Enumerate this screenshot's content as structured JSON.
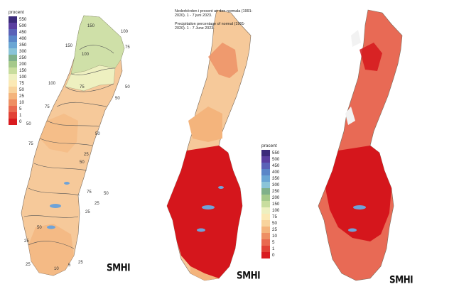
{
  "legend": {
    "title": "procent",
    "levels": [
      {
        "label": "550",
        "color": "#3b2a7a"
      },
      {
        "label": "500",
        "color": "#5a3fa0"
      },
      {
        "label": "450",
        "color": "#5a62b8"
      },
      {
        "label": "400",
        "color": "#5a86c8"
      },
      {
        "label": "350",
        "color": "#6aa6d4"
      },
      {
        "label": "300",
        "color": "#8ac4d8"
      },
      {
        "label": "250",
        "color": "#7fb08a"
      },
      {
        "label": "200",
        "color": "#a5c98b"
      },
      {
        "label": "150",
        "color": "#c8dd9e"
      },
      {
        "label": "100",
        "color": "#eef0c0"
      },
      {
        "label": "75",
        "color": "#fbe9b5"
      },
      {
        "label": "50",
        "color": "#f8d39c"
      },
      {
        "label": "25",
        "color": "#f4b47c"
      },
      {
        "label": "10",
        "color": "#ee8f63"
      },
      {
        "label": "5",
        "color": "#e9694f"
      },
      {
        "label": "1",
        "color": "#e24236"
      },
      {
        "label": "0",
        "color": "#d91b1f"
      }
    ]
  },
  "caption": {
    "swedish": "Nederbörden i procent av den normala (1991-2020). 1 - 7 juni 2023.",
    "english": "Precipitation percentage of normal (1991-2020). 1 - 7 June 2023."
  },
  "isolines": {
    "panel1": [
      "150",
      "100",
      "150",
      "100",
      "75",
      "100",
      "75",
      "50",
      "50",
      "75",
      "50",
      "50",
      "75",
      "25",
      "50",
      "75",
      "50",
      "25",
      "25",
      "50",
      "25",
      "25",
      "10",
      "5",
      "25"
    ]
  },
  "logo_text": "SMHI",
  "map_colors": {
    "land_far": "#f6c99a",
    "land_north_green": "#cfe0a8",
    "land_red": "#d5161c",
    "land_salmon": "#e86a55",
    "water_blue": "#6fa3d8"
  }
}
